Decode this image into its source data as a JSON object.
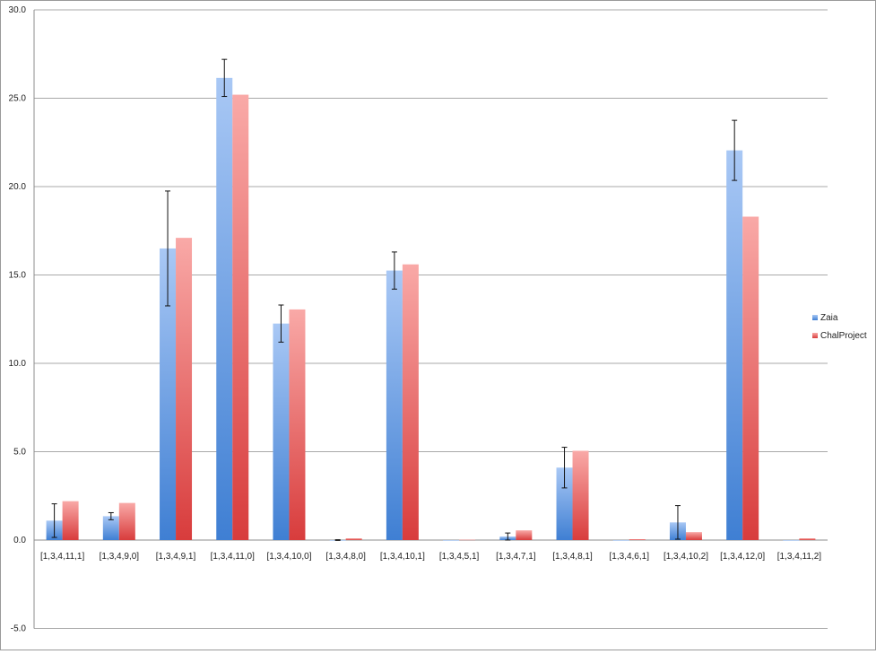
{
  "chart_data": {
    "type": "bar",
    "title": "",
    "xlabel": "",
    "ylabel": "",
    "ylim": [
      -5.0,
      30.0
    ],
    "y_ticks": [
      "-5.0",
      "0.0",
      "5.0",
      "10.0",
      "15.0",
      "20.0",
      "25.0",
      "30.0"
    ],
    "y_tick_values": [
      -5,
      0,
      5,
      10,
      15,
      20,
      25,
      30
    ],
    "grid": "horizontal",
    "legend_position": "right",
    "categories": [
      "[1,3,4,11,1]",
      "[1,3,4,9,0]",
      "[1,3,4,9,1]",
      "[1,3,4,11,0]",
      "[1,3,4,10,0]",
      "[1,3,4,8,0]",
      "[1,3,4,10,1]",
      "[1,3,4,5,1]",
      "[1,3,4,7,1]",
      "[1,3,4,8,1]",
      "[1,3,4,6,1]",
      "[1,3,4,10,2]",
      "[1,3,4,12,0]",
      "[1,3,4,11,2]"
    ],
    "series": [
      {
        "name": "Zaia",
        "color": "#4a86d8",
        "values": [
          1.1,
          1.35,
          16.5,
          26.15,
          12.25,
          0.0,
          15.25,
          0.0,
          0.2,
          4.1,
          0.0,
          1.0,
          22.05,
          0.0
        ],
        "errors": [
          0.95,
          0.2,
          3.25,
          1.05,
          1.05,
          0.02,
          1.05,
          0.0,
          0.2,
          1.15,
          0.0,
          0.95,
          1.7,
          0.0
        ]
      },
      {
        "name": "ChalProject",
        "color": "#e04848",
        "values": [
          2.2,
          2.1,
          17.1,
          25.2,
          13.05,
          0.1,
          15.6,
          0.02,
          0.55,
          5.05,
          0.05,
          0.45,
          18.3,
          0.1
        ]
      }
    ]
  }
}
